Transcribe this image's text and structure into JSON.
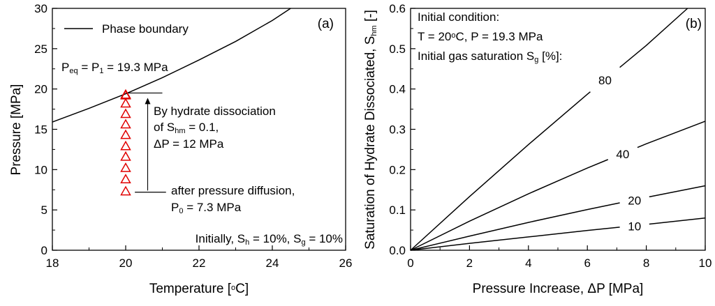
{
  "chart_data": [
    {
      "type": "line",
      "panel_label": "(a)",
      "xlabel": {
        "main": "Temperature [",
        "sup": "o",
        "tail": "C]"
      },
      "ylabel": "Pressure [MPa]",
      "xlim": [
        18,
        26
      ],
      "ylim": [
        0,
        30
      ],
      "xticks": [
        18,
        20,
        22,
        24,
        26
      ],
      "yticks": [
        0,
        5,
        10,
        15,
        20,
        25,
        30
      ],
      "legend": "Phase boundary",
      "series": [
        {
          "name": "Phase boundary",
          "x": [
            18,
            19,
            20,
            21,
            22,
            23,
            24,
            24.5
          ],
          "y": [
            15.9,
            17.6,
            19.4,
            21.4,
            23.6,
            25.9,
            28.5,
            30
          ]
        },
        {
          "name": "pressure states",
          "marker": "triangle",
          "color": "#e00000",
          "x": [
            20,
            20,
            20,
            20,
            20,
            20,
            20,
            20,
            20,
            20,
            20
          ],
          "y": [
            7.3,
            8.8,
            10.2,
            11.6,
            12.9,
            14.3,
            15.6,
            16.9,
            18.2,
            19.2,
            19.3
          ]
        }
      ],
      "guide_lines": [
        {
          "x": [
            20,
            21
          ],
          "y": [
            19.5,
            19.5
          ]
        },
        {
          "x": [
            20.25,
            21.1
          ],
          "y": [
            7.2,
            7.2
          ]
        }
      ],
      "arrow": {
        "x": 20.6,
        "y_from": 7.4,
        "y_to": 18.9
      },
      "annotations": {
        "peq": [
          {
            "t": "P"
          },
          {
            "t": "eq",
            "sub": true
          },
          {
            "t": " = P"
          },
          {
            "t": "1",
            "sub": true
          },
          {
            "t": " = 19.3 MPa"
          }
        ],
        "dissoc_line1": "By hydrate dissociation",
        "dissoc_line2": [
          {
            "t": "of S"
          },
          {
            "t": "hm",
            "sub": true
          },
          {
            "t": " = 0.1,"
          }
        ],
        "dissoc_line3": "ΔP = 12 MPa",
        "diffusion_line1": "after pressure diffusion,",
        "diffusion_line2": [
          {
            "t": "P"
          },
          {
            "t": "0",
            "sub": true
          },
          {
            "t": " = 7.3 MPa"
          }
        ],
        "initially": [
          {
            "t": "Initially, S"
          },
          {
            "t": "h",
            "sub": true
          },
          {
            "t": " = 10%, S"
          },
          {
            "t": "g",
            "sub": true
          },
          {
            "t": " = 10%"
          }
        ]
      }
    },
    {
      "type": "line",
      "panel_label": "(b)",
      "xlabel": "Pressure Increase, ΔP [MPa]",
      "ylabel": [
        {
          "t": "Saturation of Hydrate Dissociated, S"
        },
        {
          "t": "hm",
          "sub": true
        },
        {
          "t": " [-]"
        }
      ],
      "xlim": [
        0,
        10
      ],
      "ylim": [
        0,
        0.6
      ],
      "xticks": [
        0,
        2,
        4,
        6,
        8,
        10
      ],
      "yticks": [
        0.0,
        0.1,
        0.2,
        0.3,
        0.4,
        0.5,
        0.6
      ],
      "header": {
        "line1": "Initial condition:",
        "line2": [
          {
            "t": "T = 20"
          },
          {
            "t": "o",
            "sup": true
          },
          {
            "t": "C, P = 19.3 MPa"
          }
        ],
        "line3": [
          {
            "t": "Initial gas saturation S"
          },
          {
            "t": "g",
            "sub": true
          },
          {
            "t": " [%]:"
          }
        ]
      },
      "series": [
        {
          "name": "80",
          "x": [
            0,
            2,
            4,
            6,
            8,
            9.4
          ],
          "y": [
            0,
            0.133,
            0.262,
            0.387,
            0.508,
            0.6
          ],
          "label_at_x": 6.6
        },
        {
          "name": "40",
          "x": [
            0,
            2,
            4,
            6,
            8,
            10
          ],
          "y": [
            0,
            0.072,
            0.14,
            0.204,
            0.264,
            0.32
          ],
          "label_at_x": 7.2
        },
        {
          "name": "20",
          "x": [
            0,
            2,
            4,
            6,
            8,
            10
          ],
          "y": [
            0,
            0.035,
            0.069,
            0.101,
            0.131,
            0.16
          ],
          "label_at_x": 7.6
        },
        {
          "name": "10",
          "x": [
            0,
            2,
            4,
            6,
            8,
            10
          ],
          "y": [
            0,
            0.017,
            0.033,
            0.049,
            0.064,
            0.08
          ],
          "label_at_x": 7.6
        }
      ]
    }
  ]
}
